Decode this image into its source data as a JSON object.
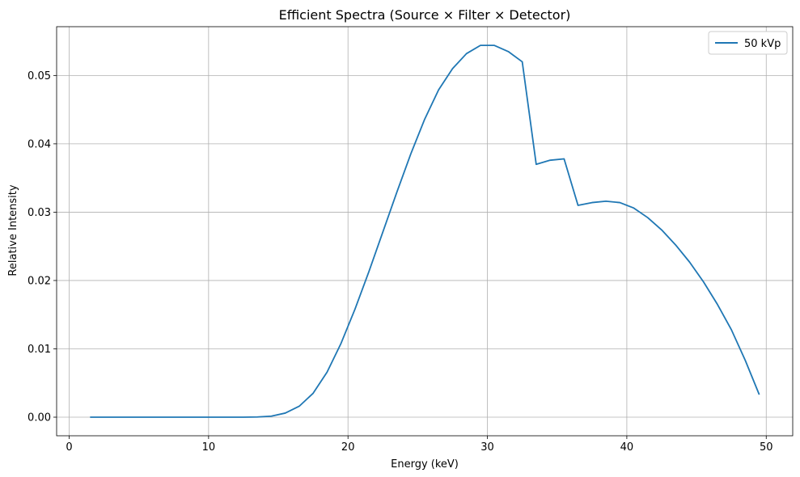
{
  "chart_data": {
    "type": "line",
    "title": "Efficient Spectra (Source × Filter × Detector)",
    "xlabel": "Energy (keV)",
    "ylabel": "Relative Intensity",
    "xlim": [
      -0.9,
      51.9
    ],
    "ylim": [
      -0.00272,
      0.05714
    ],
    "xticks": [
      0,
      10,
      20,
      30,
      40,
      50
    ],
    "xtick_labels": [
      "0",
      "10",
      "20",
      "30",
      "40",
      "50"
    ],
    "yticks": [
      0.0,
      0.01,
      0.02,
      0.03,
      0.04,
      0.05
    ],
    "ytick_labels": [
      "0.00",
      "0.01",
      "0.02",
      "0.03",
      "0.04",
      "0.05"
    ],
    "grid": true,
    "legend_position": "top-right",
    "series": [
      {
        "name": "50 kVp",
        "color": "#1f77b4",
        "x": [
          1.5,
          2.5,
          3.5,
          4.5,
          5.5,
          6.5,
          7.5,
          8.5,
          9.5,
          10.5,
          11.5,
          12.5,
          13.5,
          14.5,
          15.5,
          16.5,
          17.5,
          18.5,
          19.5,
          20.5,
          21.5,
          22.5,
          23.5,
          24.5,
          25.5,
          26.5,
          27.5,
          28.5,
          29.5,
          30.5,
          31.5,
          32.5,
          33.5,
          34.5,
          35.5,
          36.5,
          37.5,
          38.5,
          39.5,
          40.5,
          41.5,
          42.5,
          43.5,
          44.5,
          45.5,
          46.5,
          47.5,
          48.5,
          49.5
        ],
        "y": [
          0,
          0,
          0,
          0,
          0,
          0,
          0,
          0,
          0,
          0,
          0,
          0,
          3e-05,
          0.00015,
          0.0006,
          0.0016,
          0.0035,
          0.0066,
          0.0108,
          0.0158,
          0.0213,
          0.0271,
          0.0329,
          0.0385,
          0.0436,
          0.0479,
          0.051,
          0.0532,
          0.0544,
          0.0544,
          0.0535,
          0.052,
          0.037,
          0.0376,
          0.0378,
          0.031,
          0.0314,
          0.0316,
          0.0314,
          0.0306,
          0.0292,
          0.0274,
          0.0252,
          0.0227,
          0.0198,
          0.0165,
          0.0128,
          0.0083,
          0.0033
        ]
      }
    ]
  }
}
